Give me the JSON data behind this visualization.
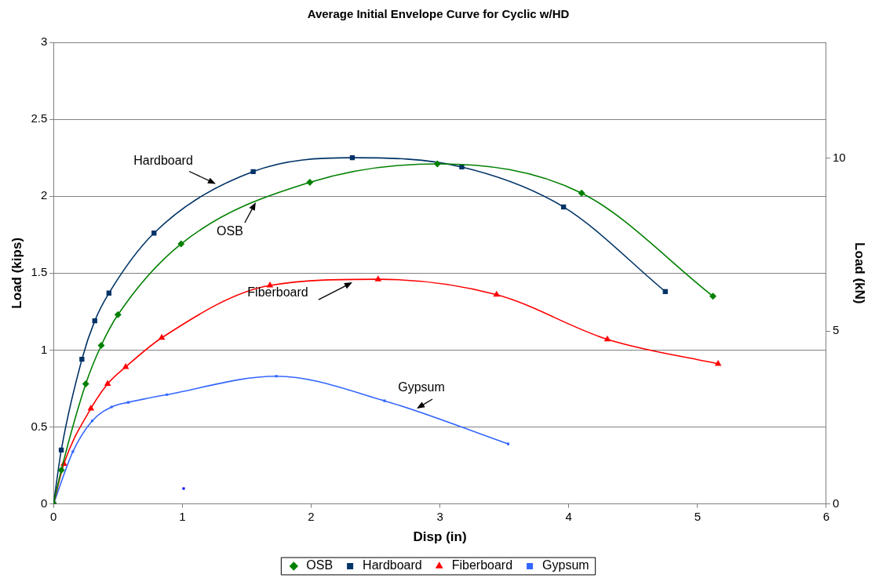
{
  "chart_data": {
    "type": "line",
    "title": "Average Initial Envelope Curve for Cyclic w/HD",
    "xlabel": "Disp (in)",
    "ylabel": "Load (kips)",
    "y2label": "Load (kN)",
    "xlim": [
      0,
      6
    ],
    "xticks": [
      0,
      1,
      2,
      3,
      4,
      5,
      6
    ],
    "ylim": [
      0,
      3
    ],
    "yticks": [
      0,
      0.5,
      1,
      1.5,
      2,
      2.5,
      3
    ],
    "y2lim": [
      0,
      13.345
    ],
    "y2ticks": [
      0,
      5,
      10
    ],
    "grid": "y",
    "legend": "bottom",
    "series": [
      {
        "name": "OSB",
        "color": "#008000",
        "marker": "diamond",
        "x": [
          0,
          0.06,
          0.25,
          0.37,
          0.5,
          0.99,
          1.99,
          2.98,
          4.1,
          5.12
        ],
        "values": [
          0,
          0.22,
          0.78,
          1.03,
          1.23,
          1.69,
          2.09,
          2.21,
          2.02,
          1.35
        ]
      },
      {
        "name": "Hardboard",
        "color": "#003366",
        "marker": "square",
        "x": [
          0,
          0.06,
          0.22,
          0.32,
          0.43,
          0.78,
          1.55,
          2.32,
          3.17,
          3.96,
          4.75
        ],
        "values": [
          0,
          0.35,
          0.94,
          1.19,
          1.37,
          1.76,
          2.16,
          2.25,
          2.19,
          1.93,
          1.38
        ]
      },
      {
        "name": "Fiberboard",
        "color": "#ff0000",
        "marker": "triangle",
        "x": [
          0,
          0.08,
          0.29,
          0.42,
          0.56,
          0.84,
          1.68,
          2.52,
          3.44,
          4.3,
          5.16
        ],
        "values": [
          0,
          0.26,
          0.62,
          0.78,
          0.89,
          1.08,
          1.42,
          1.46,
          1.36,
          1.07,
          0.91
        ]
      },
      {
        "name": "Gypsum",
        "color": "#3366ff",
        "marker": "square",
        "x": [
          0,
          0.15,
          0.3,
          0.45,
          0.58,
          0.88,
          1.73,
          2.57,
          3.53
        ],
        "values": [
          0,
          0.34,
          0.54,
          0.63,
          0.66,
          0.71,
          0.83,
          0.67,
          0.39
        ]
      },
      {
        "type": "scatter",
        "color": "#0000ff",
        "marker": "square",
        "x": [
          1.01
        ],
        "values": [
          0.1
        ]
      }
    ],
    "annotations": [
      {
        "text": "Hardboard",
        "x": 1.26,
        "y": 2.08
      },
      {
        "text": "OSB",
        "x": 1.57,
        "y": 1.96
      },
      {
        "text": "Fiberboard",
        "x": 2.32,
        "y": 1.44
      },
      {
        "text": "Gypsum",
        "x": 2.82,
        "y": 0.62
      }
    ]
  }
}
